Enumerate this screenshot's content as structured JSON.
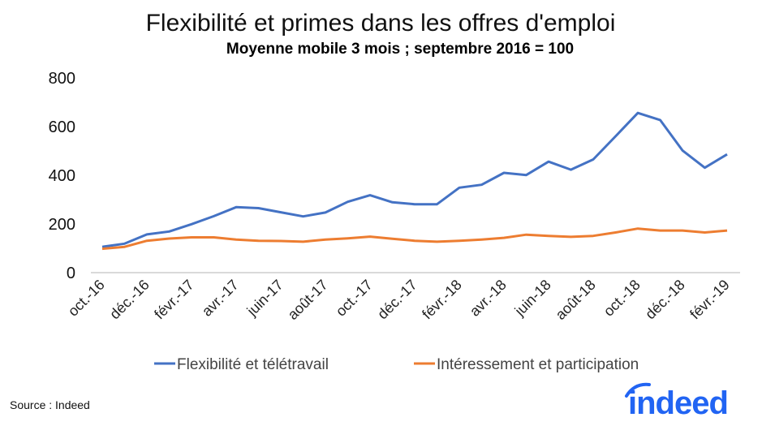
{
  "chart_data": {
    "type": "line",
    "title": "Flexibilité et primes dans les offres d'emploi",
    "subtitle": "Moyenne mobile 3 mois ; septembre 2016 = 100",
    "xlabel": "",
    "ylabel": "",
    "ylim": [
      0,
      800
    ],
    "yticks": [
      "0",
      "200",
      "400",
      "600",
      "800"
    ],
    "grid": false,
    "legend_position": "bottom",
    "x": [
      "oct.-16",
      "nov.-16",
      "déc.-16",
      "janv.-17",
      "févr.-17",
      "mars-17",
      "avr.-17",
      "mai-17",
      "juin-17",
      "juil.-17",
      "août-17",
      "sept.-17",
      "oct.-17",
      "nov.-17",
      "déc.-17",
      "janv.-18",
      "févr.-18",
      "mars-18",
      "avr.-18",
      "mai-18",
      "juin-18",
      "juil.-18",
      "août-18",
      "sept.-18",
      "oct.-18",
      "nov.-18",
      "déc.-18",
      "janv.-19",
      "févr.-19"
    ],
    "xtick_labels": [
      "oct.-16",
      "déc.-16",
      "févr.-17",
      "avr.-17",
      "juin-17",
      "août-17",
      "oct.-17",
      "déc.-17",
      "févr.-18",
      "avr.-18",
      "juin-18",
      "août-18",
      "oct.-18",
      "déc.-18",
      "févr.-19"
    ],
    "series": [
      {
        "name": "Flexibilité et télétravail",
        "color": "#4472c4",
        "values": [
          106,
          119,
          157,
          169,
          199,
          232,
          269,
          265,
          248,
          231,
          247,
          291,
          318,
          289,
          281,
          281,
          349,
          361,
          410,
          401,
          456,
          423,
          465,
          560,
          656,
          627,
          502,
          431,
          486
        ]
      },
      {
        "name": "Intéressement et participation",
        "color": "#ed7d31",
        "values": [
          98,
          106,
          131,
          140,
          145,
          145,
          136,
          131,
          130,
          127,
          136,
          141,
          148,
          139,
          131,
          127,
          131,
          136,
          143,
          156,
          151,
          147,
          151,
          165,
          181,
          173,
          173,
          165,
          173
        ]
      }
    ]
  },
  "source": "Source : Indeed",
  "logo_text": "indeed",
  "colors": {
    "axis": "#d9d9d9",
    "logo": "#2164f3"
  }
}
